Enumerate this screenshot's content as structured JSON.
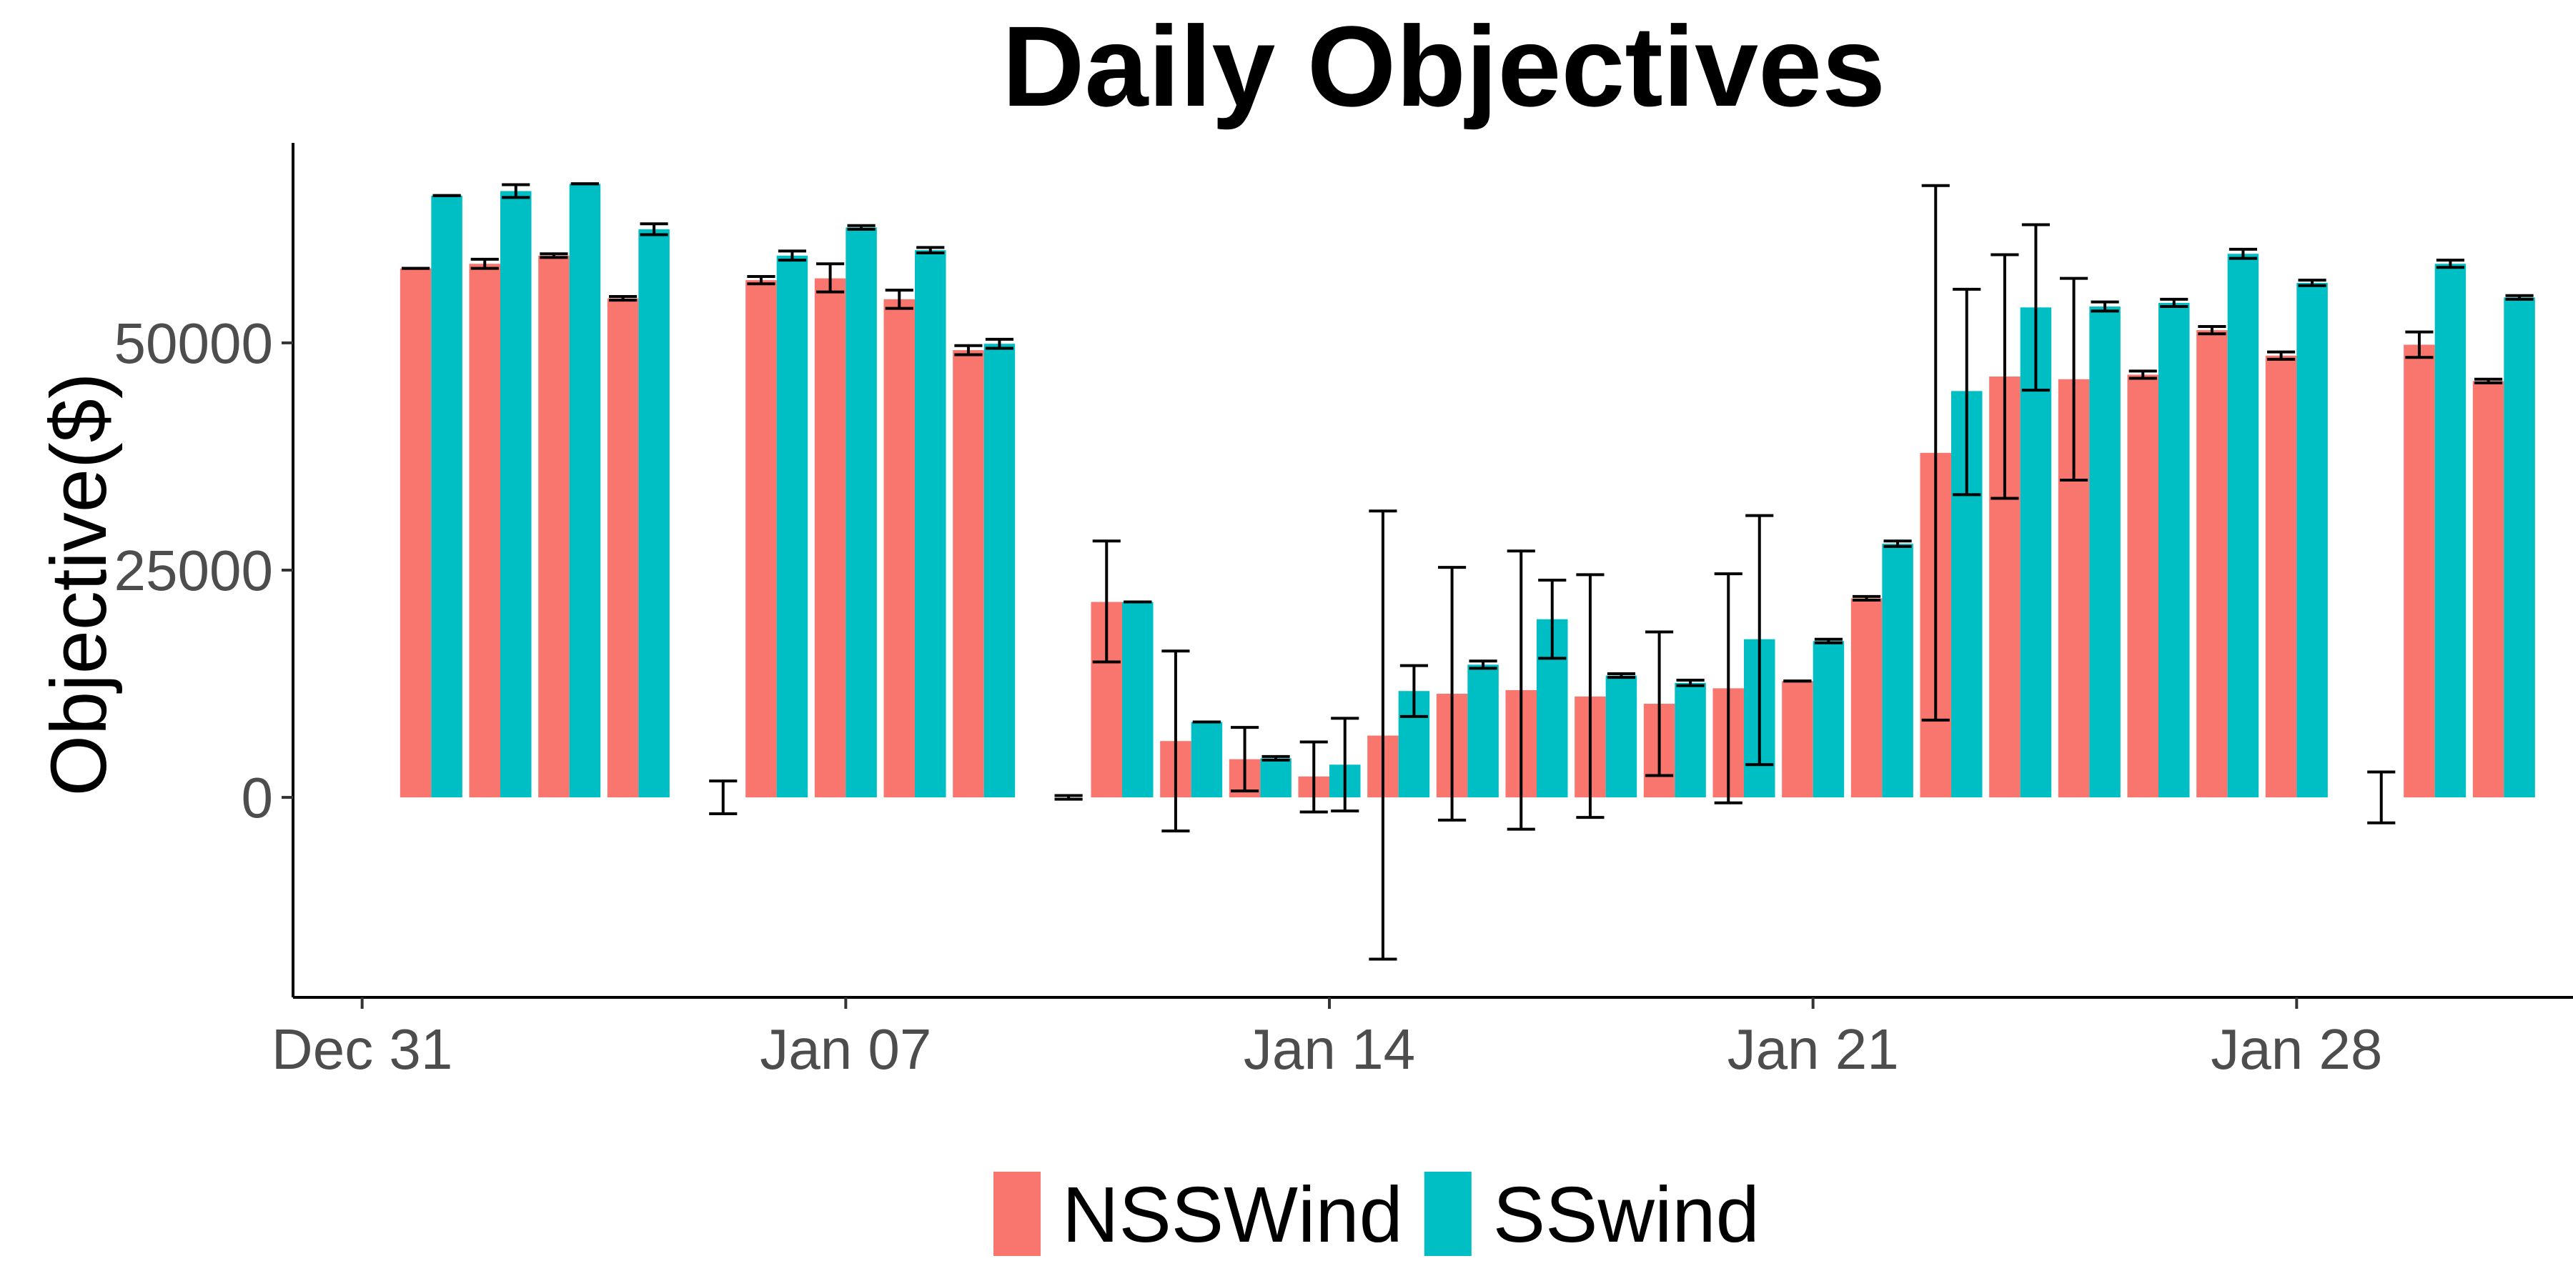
{
  "chart_data": {
    "type": "bar",
    "title": "Daily Objectives",
    "xlabel": "",
    "ylabel": "Objective($)",
    "x_dates": [
      "2018-01-01",
      "2018-01-02",
      "2018-01-03",
      "2018-01-04",
      "2018-01-05",
      "2018-01-06",
      "2018-01-07",
      "2018-01-08",
      "2018-01-09",
      "2018-01-10",
      "2018-01-11",
      "2018-01-12",
      "2018-01-13",
      "2018-01-14",
      "2018-01-15",
      "2018-01-16",
      "2018-01-17",
      "2018-01-18",
      "2018-01-19",
      "2018-01-20",
      "2018-01-21",
      "2018-01-22",
      "2018-01-23",
      "2018-01-24",
      "2018-01-25",
      "2018-01-26",
      "2018-01-27",
      "2018-01-28",
      "2018-01-29",
      "2018-01-30",
      "2018-01-31"
    ],
    "x_ticks": [
      "Dec 31",
      "Jan 07",
      "Jan 14",
      "Jan 21",
      "Jan 28"
    ],
    "x_tick_dates": [
      "2017-12-31",
      "2018-01-07",
      "2018-01-14",
      "2018-01-21",
      "2018-01-28"
    ],
    "xlim": [
      "2017-12-30",
      "2018-02-01"
    ],
    "y_ticks": [
      0,
      25000,
      50000
    ],
    "ylim": [
      -22000,
      72000
    ],
    "grid": false,
    "legend_position": "bottom",
    "series": [
      {
        "name": "NSSWind",
        "color": "#F8766D",
        "values": [
          58200,
          58700,
          59600,
          54900,
          0,
          56900,
          57100,
          54800,
          49200,
          0,
          21500,
          6200,
          4200,
          2300,
          6800,
          11400,
          11800,
          11100,
          10300,
          12000,
          12800,
          21900,
          37900,
          46300,
          46000,
          46500,
          51400,
          48600,
          0,
          49800,
          45800
        ],
        "err_low": [
          58200,
          58200,
          59400,
          54700,
          null,
          56500,
          55600,
          53800,
          48700,
          null,
          14900,
          -3700,
          700,
          -1600,
          -17800,
          -2500,
          -3500,
          -2200,
          2400,
          -600,
          12800,
          21700,
          8500,
          32900,
          34900,
          46100,
          51000,
          48200,
          null,
          48400,
          45600
        ],
        "err_high": [
          58200,
          59200,
          59800,
          55100,
          null,
          57300,
          58700,
          55800,
          49700,
          null,
          28200,
          16100,
          7700,
          6100,
          31500,
          25300,
          27100,
          24500,
          18200,
          24600,
          12800,
          22100,
          67300,
          59700,
          57100,
          46900,
          51800,
          49000,
          null,
          51200,
          46000
        ]
      },
      {
        "name": "SSwind",
        "color": "#00BFC4",
        "values": [
          66200,
          66700,
          67500,
          62500,
          0,
          59600,
          62700,
          60200,
          49900,
          0,
          21500,
          8300,
          4300,
          3600,
          11700,
          14600,
          19600,
          13400,
          12600,
          17400,
          17200,
          27900,
          44700,
          53900,
          54000,
          54400,
          59800,
          56600,
          0,
          58700,
          55000
        ],
        "err_low": [
          66200,
          66000,
          67500,
          61900,
          -1800,
          59100,
          62500,
          59900,
          49400,
          -200,
          21500,
          8300,
          4100,
          -1500,
          8900,
          14200,
          15300,
          13200,
          12300,
          3600,
          17000,
          27600,
          33300,
          44800,
          53500,
          54000,
          59300,
          56300,
          -2800,
          58300,
          54800
        ],
        "err_high": [
          66200,
          67400,
          67500,
          63100,
          1800,
          60100,
          62900,
          60500,
          50400,
          200,
          21500,
          8300,
          4500,
          8700,
          14500,
          15000,
          23900,
          13600,
          12900,
          31000,
          17400,
          28200,
          55900,
          63000,
          54500,
          54800,
          60300,
          56900,
          2800,
          59100,
          55200
        ]
      }
    ]
  }
}
